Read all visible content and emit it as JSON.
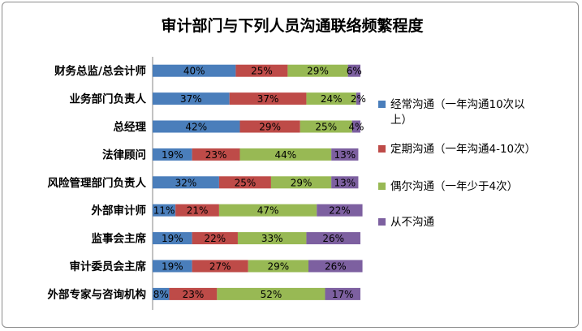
{
  "chart_data": {
    "type": "bar",
    "orientation": "horizontal",
    "stacked": "percent",
    "title": "审计部门与下列人员沟通联络频繁程度",
    "categories": [
      "财务总监/总会计师",
      "业务部门负责人",
      "总经理",
      "法律顾问",
      "风险管理部门负责人",
      "外部审计师",
      "监事会主席",
      "审计委员会主席",
      "外部专家与咨询机构"
    ],
    "series": [
      {
        "name": "经常沟通（一年沟通10次以上）",
        "legend_lines": [
          "经常沟通（一年沟通10次以",
          "上）"
        ],
        "color": "#4a7ebb",
        "values": [
          40,
          37,
          42,
          19,
          32,
          11,
          19,
          19,
          8
        ],
        "labels": [
          "40%",
          "37%",
          "42%",
          "19%",
          "32%",
          "11%",
          "19%",
          "19%",
          "8%"
        ]
      },
      {
        "name": "定期沟通（一年沟通4-10次）",
        "legend_lines": [
          "定期沟通（一年沟通4-10次）"
        ],
        "color": "#be4b48",
        "values": [
          25,
          37,
          29,
          23,
          25,
          21,
          22,
          27,
          23
        ],
        "labels": [
          "25%",
          "37%",
          "29%",
          "23%",
          "25%",
          "21%",
          "22%",
          "27%",
          "23%"
        ]
      },
      {
        "name": "偶尔沟通（一年少于4次）",
        "legend_lines": [
          "偶尔沟通（一年少于4次）"
        ],
        "color": "#98b954",
        "values": [
          29,
          24,
          25,
          44,
          29,
          47,
          33,
          29,
          52
        ],
        "labels": [
          "29%",
          "24%",
          "25%",
          "44%",
          "29%",
          "47%",
          "33%",
          "29%",
          "52%"
        ]
      },
      {
        "name": "从不沟通",
        "legend_lines": [
          "从不沟通"
        ],
        "color": "#7d60a0",
        "values": [
          6,
          2,
          4,
          13,
          13,
          22,
          26,
          26,
          17
        ],
        "labels": [
          "6%",
          "2%",
          "4%",
          "13%",
          "13%",
          "22%",
          "26%",
          "26%",
          "17%"
        ]
      }
    ],
    "xlim": [
      0,
      100
    ],
    "grid": false,
    "legend_position": "right"
  }
}
